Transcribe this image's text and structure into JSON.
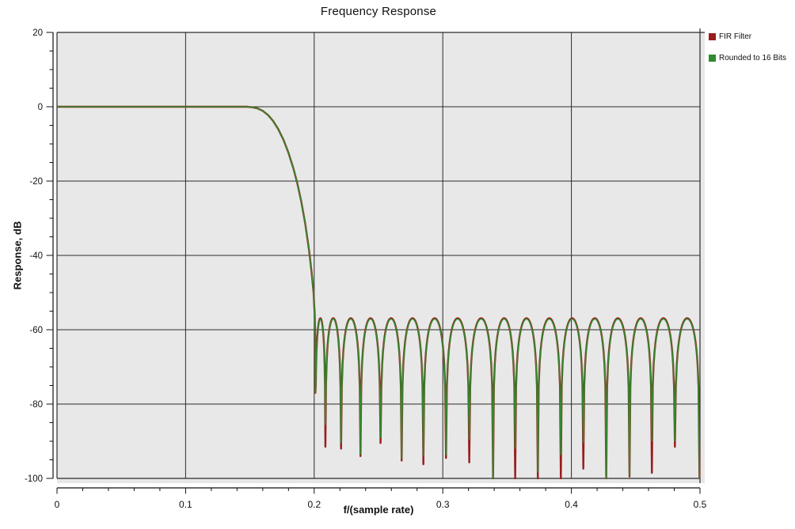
{
  "title": "Frequency Response",
  "legend": {
    "items": [
      {
        "label": "FIR Filter",
        "color": "#9b1c1c"
      },
      {
        "label": "Rounded to 16 Bits",
        "color": "#2f8b2f"
      }
    ]
  },
  "chart_data": {
    "type": "line",
    "title": "Frequency Response",
    "xlabel": "f/(sample rate)",
    "ylabel": "Response, dB",
    "xlim": [
      0,
      0.5
    ],
    "ylim": [
      -100,
      20
    ],
    "x_ticks": {
      "major": [
        0,
        0.1,
        0.2,
        0.3,
        0.4,
        0.5
      ],
      "labels": [
        "0",
        "0.1",
        "0.2",
        "0.3",
        "0.4",
        "0.5"
      ],
      "minor_step": 0.02
    },
    "y_ticks": {
      "major": [
        20,
        0,
        -20,
        -40,
        -60,
        -80,
        -100
      ],
      "labels": [
        "20",
        "0",
        "-20",
        "-40",
        "-60",
        "-80",
        "-100"
      ],
      "minor_step": 5
    },
    "grid": true,
    "plot_bg": "#e8e8e8",
    "grid_color": "#2b2b2b",
    "axis_color": "#111111",
    "legend_position": "outside-top-right",
    "passband": {
      "level_db": 0,
      "end_f": 0.148
    },
    "transition_points": [
      [
        0.148,
        -0.02
      ],
      [
        0.152,
        -0.15
      ],
      [
        0.156,
        -0.45
      ],
      [
        0.16,
        -1.1
      ],
      [
        0.164,
        -2.2
      ],
      [
        0.168,
        -3.8
      ],
      [
        0.172,
        -6.0
      ],
      [
        0.176,
        -8.8
      ],
      [
        0.18,
        -12.4
      ],
      [
        0.184,
        -16.8
      ],
      [
        0.187,
        -20.8
      ],
      [
        0.19,
        -25.6
      ],
      [
        0.193,
        -31.4
      ],
      [
        0.196,
        -38.6
      ],
      [
        0.198,
        -44.6
      ],
      [
        0.1995,
        -50
      ],
      [
        0.2004,
        -56
      ],
      [
        0.2008,
        -62
      ]
    ],
    "stopband_nulls_f": [
      0.2009,
      0.2087,
      0.2209,
      0.236,
      0.2516,
      0.268,
      0.2849,
      0.3025,
      0.3206,
      0.3391,
      0.3563,
      0.3739,
      0.3918,
      0.4093,
      0.4271,
      0.4452,
      0.4626,
      0.4805,
      0.4996
    ],
    "series": [
      {
        "name": "FIR Filter",
        "color": "#9b1c1c",
        "lobe_peak_db": -56.9,
        "null_depths_db": [
          -77,
          -91.5,
          -92,
          -94,
          -90.5,
          -95.2,
          -96.2,
          -94.5,
          -95.7,
          -100,
          -100,
          -100,
          -100,
          -97.4,
          -100,
          -99.5,
          -98.5,
          -91.5,
          -100
        ]
      },
      {
        "name": "Rounded to 16 Bits",
        "color": "#2f8b2f",
        "lobe_peak_db": -57.1,
        "null_depths_db": [
          -77,
          -85.5,
          -90.4,
          -93.5,
          -89,
          -94.7,
          -94,
          -93.6,
          -89.4,
          -100,
          -91.9,
          -98.3,
          -93.6,
          -90.4,
          -100,
          -99.3,
          -90,
          -90,
          -100
        ]
      }
    ]
  }
}
